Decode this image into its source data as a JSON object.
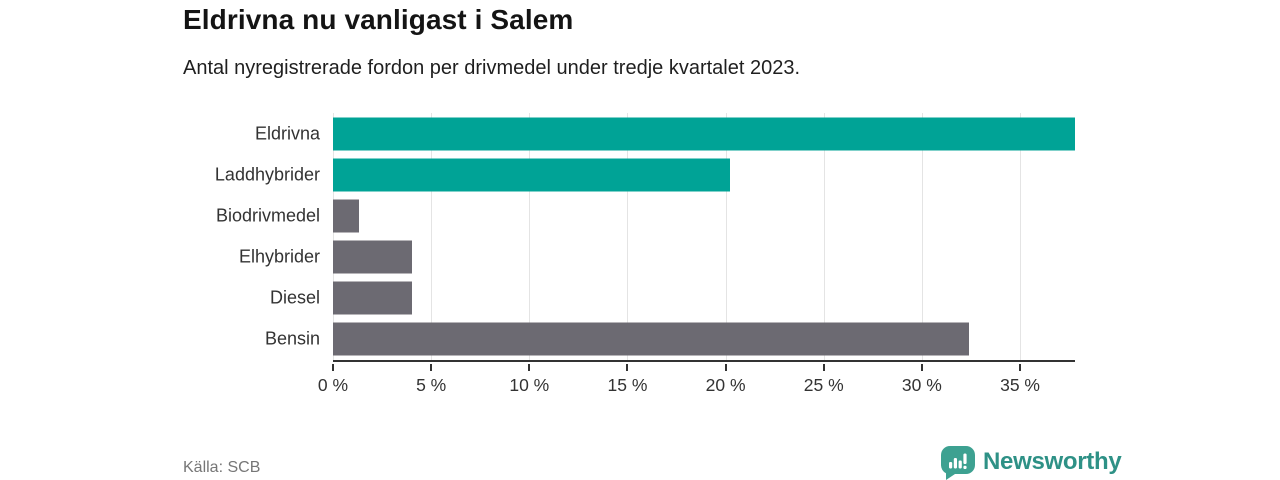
{
  "header": {
    "title": "Eldrivna nu vanligast i Salem",
    "subtitle": "Antal nyregistrerade fordon per drivmedel under tredje kvartalet 2023."
  },
  "footer": {
    "source": "Källa: SCB",
    "brand_name": "Newsworthy"
  },
  "colors": {
    "teal_bar": "#00a396",
    "gray_bar": "#6c6a72",
    "gridline": "#e4e4e4",
    "axis": "#333333",
    "brand_teal": "#2e9186",
    "brand_icon_teal": "#3da191"
  },
  "chart_data": {
    "type": "bar",
    "orientation": "horizontal",
    "title": "Eldrivna nu vanligast i Salem",
    "subtitle": "Antal nyregistrerade fordon per drivmedel under tredje kvartalet 2023.",
    "categories": [
      "Eldrivna",
      "Laddhybrider",
      "Biodrivmedel",
      "Elhybrider",
      "Diesel",
      "Bensin"
    ],
    "values": [
      37.8,
      20.2,
      1.3,
      4.0,
      4.0,
      32.4
    ],
    "unit": "%",
    "bar_colors": [
      "#00a396",
      "#00a396",
      "#6c6a72",
      "#6c6a72",
      "#6c6a72",
      "#6c6a72"
    ],
    "xlim": [
      0,
      37.8
    ],
    "xticks": [
      0,
      5,
      10,
      15,
      20,
      25,
      30,
      35
    ],
    "xtick_labels": [
      "0 %",
      "5 %",
      "10 %",
      "15 %",
      "20 %",
      "25 %",
      "30 %",
      "35 %"
    ],
    "grid": true,
    "legend": "none",
    "source": "Källa: SCB"
  }
}
